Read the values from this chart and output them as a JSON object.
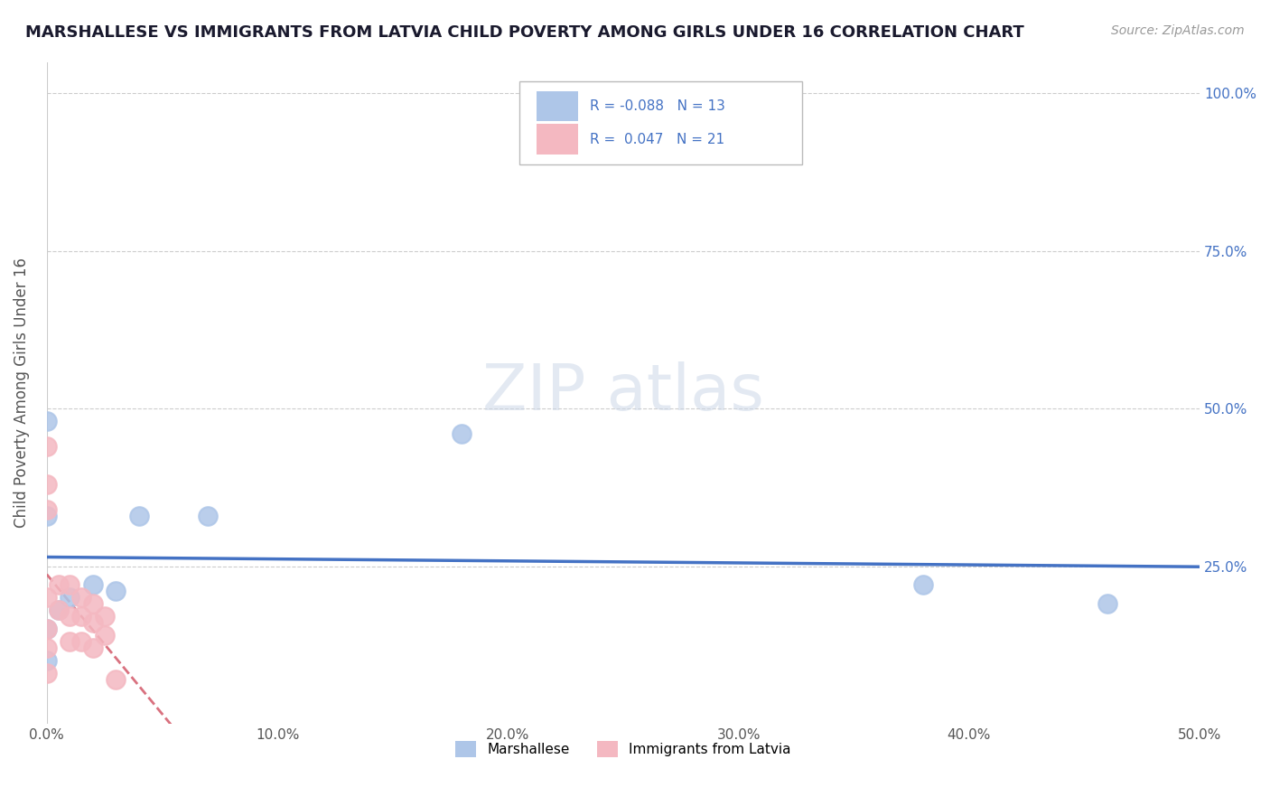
{
  "title": "MARSHALLESE VS IMMIGRANTS FROM LATVIA CHILD POVERTY AMONG GIRLS UNDER 16 CORRELATION CHART",
  "source": "Source: ZipAtlas.com",
  "ylabel": "Child Poverty Among Girls Under 16",
  "xlim": [
    0.0,
    0.5
  ],
  "ylim": [
    0.0,
    1.05
  ],
  "xtick_vals": [
    0.0,
    0.1,
    0.2,
    0.3,
    0.4,
    0.5
  ],
  "ytick_vals": [
    0.25,
    0.5,
    0.75,
    1.0
  ],
  "ytick_labels": [
    "25.0%",
    "50.0%",
    "75.0%",
    "100.0%"
  ],
  "marshallese_x": [
    0.04,
    0.07,
    0.0,
    0.0,
    0.0,
    0.005,
    0.01,
    0.02,
    0.03,
    0.38,
    0.46,
    0.0,
    0.18
  ],
  "marshallese_y": [
    0.33,
    0.33,
    0.33,
    0.1,
    0.15,
    0.18,
    0.2,
    0.22,
    0.21,
    0.22,
    0.19,
    0.48,
    0.46
  ],
  "latvia_x": [
    0.0,
    0.0,
    0.0,
    0.0,
    0.0,
    0.0,
    0.0,
    0.005,
    0.005,
    0.01,
    0.01,
    0.01,
    0.015,
    0.015,
    0.015,
    0.02,
    0.02,
    0.02,
    0.025,
    0.025,
    0.03
  ],
  "latvia_y": [
    0.44,
    0.38,
    0.34,
    0.2,
    0.15,
    0.12,
    0.08,
    0.22,
    0.18,
    0.22,
    0.17,
    0.13,
    0.2,
    0.17,
    0.13,
    0.19,
    0.16,
    0.12,
    0.17,
    0.14,
    0.07
  ],
  "marshallese_color": "#aec6e8",
  "latvia_color": "#f4b8c1",
  "marshallese_R": -0.088,
  "marshallese_N": 13,
  "latvia_R": 0.047,
  "latvia_N": 21,
  "trend_color_marshallese": "#4472c4",
  "trend_color_latvia": "#d9717f",
  "background_color": "#ffffff",
  "grid_color": "#cccccc",
  "tick_label_color": "#555555",
  "right_tick_color": "#4472c4"
}
